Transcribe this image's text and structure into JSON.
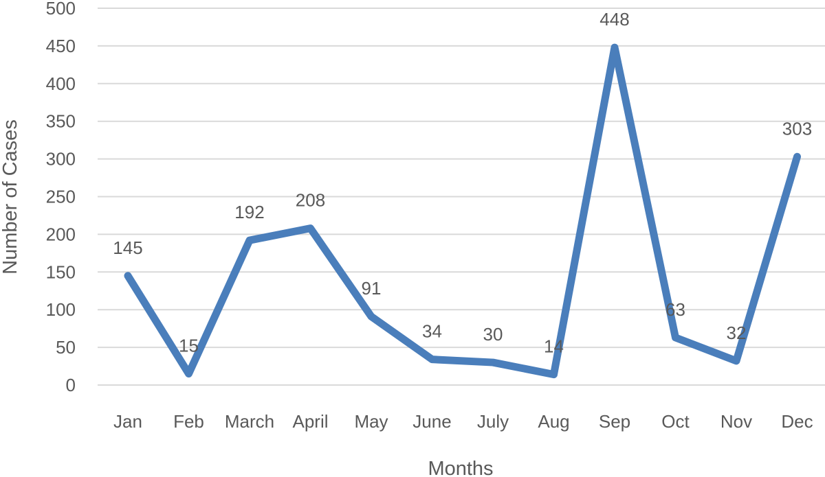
{
  "chart_data": {
    "type": "line",
    "title": "",
    "xlabel": "Months",
    "ylabel": "Number of Cases",
    "categories": [
      "Jan",
      "Feb",
      "March",
      "April",
      "May",
      "June",
      "July",
      "Aug",
      "Sep",
      "Oct",
      "Nov",
      "Dec"
    ],
    "series": [
      {
        "values": [
          145,
          15,
          192,
          208,
          91,
          34,
          30,
          14,
          448,
          63,
          32,
          303
        ],
        "color": "#4a7ebb"
      }
    ],
    "yticks": [
      0,
      50,
      100,
      150,
      200,
      250,
      300,
      350,
      400,
      450,
      500
    ],
    "ylim": [
      0,
      500
    ],
    "grid": true,
    "legend": "none",
    "data_labels": true
  }
}
